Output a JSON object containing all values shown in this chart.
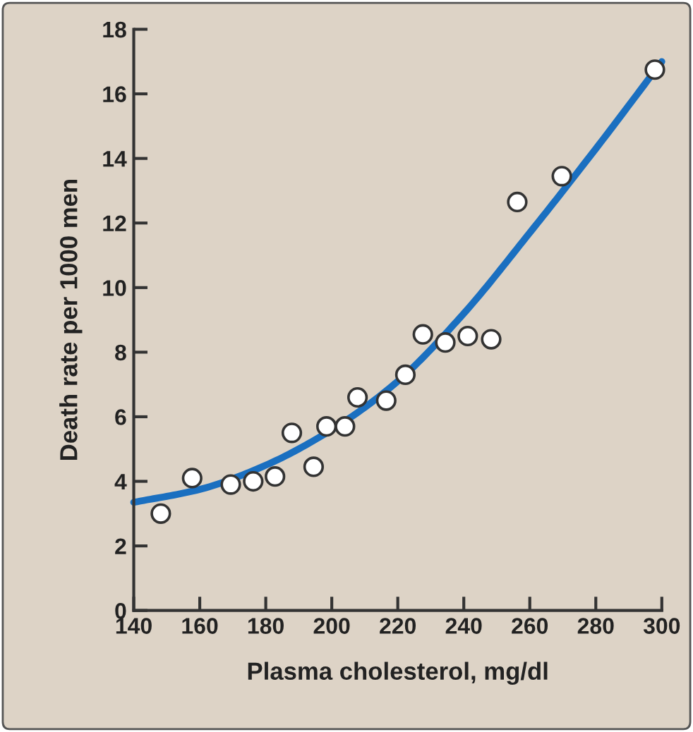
{
  "chart_data": {
    "type": "scatter",
    "xlabel": "Plasma cholesterol, mg/dl",
    "ylabel": "Death rate per 1000 men",
    "xlim": [
      140,
      300
    ],
    "xticks": [
      140,
      160,
      180,
      200,
      220,
      240,
      260,
      280,
      300
    ],
    "ylim": [
      0,
      18
    ],
    "yticks": [
      0,
      2,
      4,
      6,
      8,
      10,
      12,
      14,
      16,
      18
    ],
    "series": [
      {
        "type": "line",
        "color": "#1a6fc0",
        "marker": "none",
        "line_style": "solid",
        "x": [
          140,
          160,
          180,
          200,
          220,
          240,
          260,
          280,
          300
        ],
        "values": [
          3.35,
          3.75,
          4.5,
          5.6,
          7.1,
          9.2,
          11.7,
          14.3,
          17.0
        ]
      },
      {
        "color": "#ffffff",
        "marker": "circle",
        "x": [
          148.2,
          157.7,
          169.4,
          176.2,
          182.8,
          187.9,
          194.5,
          198.4,
          204,
          207.8,
          216.5,
          222.3,
          227.6,
          234.4,
          241.2,
          248.3,
          256.2,
          269.7,
          297.9
        ],
        "values": [
          3.0,
          4.1,
          3.9,
          4.0,
          4.15,
          5.5,
          4.45,
          5.7,
          5.7,
          6.6,
          6.5,
          7.3,
          8.55,
          8.3,
          8.5,
          8.4,
          12.65,
          13.45,
          16.75
        ]
      }
    ]
  }
}
